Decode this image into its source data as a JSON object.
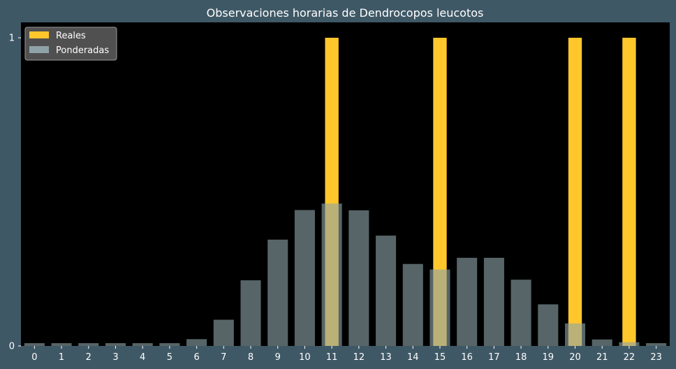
{
  "chart_data": {
    "type": "bar",
    "title": "Observaciones horarias de Dendrocopos leucotos",
    "xlabel": "",
    "ylabel": "",
    "categories": [
      "0",
      "1",
      "2",
      "3",
      "4",
      "5",
      "6",
      "7",
      "8",
      "9",
      "10",
      "11",
      "12",
      "13",
      "14",
      "15",
      "16",
      "17",
      "18",
      "19",
      "20",
      "21",
      "22",
      "23"
    ],
    "ylim": [
      0,
      1.05
    ],
    "yticks": [
      0,
      1
    ],
    "grid": false,
    "legend": {
      "placement": "top-left"
    },
    "series": [
      {
        "name": "Reales",
        "color": "#ffc72c",
        "values": [
          0,
          0,
          0,
          0,
          0,
          0,
          0,
          0,
          0,
          0,
          0,
          1,
          0,
          0,
          0,
          1,
          0,
          0,
          0,
          0,
          1,
          0,
          1,
          0
        ]
      },
      {
        "name": "Ponderadas",
        "color": "#8ea3a8",
        "values": [
          0.009,
          0.009,
          0.009,
          0.009,
          0.009,
          0.009,
          0.022,
          0.085,
          0.213,
          0.345,
          0.441,
          0.462,
          0.44,
          0.358,
          0.266,
          0.248,
          0.286,
          0.286,
          0.215,
          0.135,
          0.073,
          0.021,
          0.012,
          0.009
        ]
      }
    ]
  },
  "colors": {
    "figure_background": "#3f5866",
    "plot_background": "#000000",
    "legend_background": "#595959",
    "text": "#ffffff"
  }
}
